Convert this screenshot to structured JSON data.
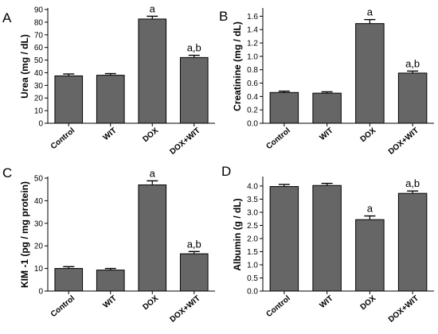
{
  "chart_data": [
    {
      "type": "bar",
      "panel": "A",
      "ylabel": "Urea (mg / dL)",
      "categories": [
        "Control",
        "WIT",
        "DOX",
        "DOX+WIT"
      ],
      "values": [
        37.5,
        38,
        82.5,
        52
      ],
      "errors": [
        1.5,
        1.3,
        2.2,
        1.8
      ],
      "significance": [
        "",
        "",
        "a",
        "a,b"
      ],
      "ylim": [
        0,
        90
      ],
      "yticks": [
        0,
        10,
        20,
        30,
        40,
        50,
        60,
        70,
        80,
        90
      ],
      "bar_color": "#666666",
      "grid": false
    },
    {
      "type": "bar",
      "panel": "B",
      "ylabel": "Creatinine (mg / dL)",
      "categories": [
        "Control",
        "WIT",
        "DOX",
        "DOX+WIT"
      ],
      "values": [
        0.46,
        0.45,
        1.49,
        0.75
      ],
      "errors": [
        0.02,
        0.02,
        0.06,
        0.03
      ],
      "significance": [
        "",
        "",
        "a",
        "a,b"
      ],
      "ylim": [
        0,
        1.7
      ],
      "yticks": [
        0.0,
        0.2,
        0.4,
        0.6,
        0.8,
        1.0,
        1.2,
        1.4,
        1.6
      ],
      "tick_decimals": 1,
      "bar_color": "#666666",
      "grid": false
    },
    {
      "type": "bar",
      "panel": "C",
      "ylabel": "KIM -1 (pg / mg protein)",
      "categories": [
        "Control",
        "WIT",
        "DOX",
        "DOX+WIT"
      ],
      "values": [
        10,
        9.3,
        47,
        16.5
      ],
      "errors": [
        0.8,
        0.7,
        1.8,
        1.0
      ],
      "significance": [
        "",
        "",
        "a",
        "a,b"
      ],
      "ylim": [
        0,
        50
      ],
      "yticks": [
        0,
        10,
        20,
        30,
        40,
        50
      ],
      "bar_color": "#666666",
      "grid": false
    },
    {
      "type": "bar",
      "panel": "D",
      "ylabel": "Albumin (g / dL)",
      "categories": [
        "Control",
        "WIT",
        "DOX",
        "DOX+WIT"
      ],
      "values": [
        3.98,
        4.02,
        2.72,
        3.72
      ],
      "errors": [
        0.08,
        0.08,
        0.14,
        0.09
      ],
      "significance": [
        "",
        "",
        "a",
        "a,b"
      ],
      "ylim": [
        0,
        4.3
      ],
      "yticks": [
        0.0,
        0.5,
        1.0,
        1.5,
        2.0,
        2.5,
        3.0,
        3.5,
        4.0
      ],
      "tick_decimals": 1,
      "bar_color": "#666666",
      "grid": false
    }
  ]
}
